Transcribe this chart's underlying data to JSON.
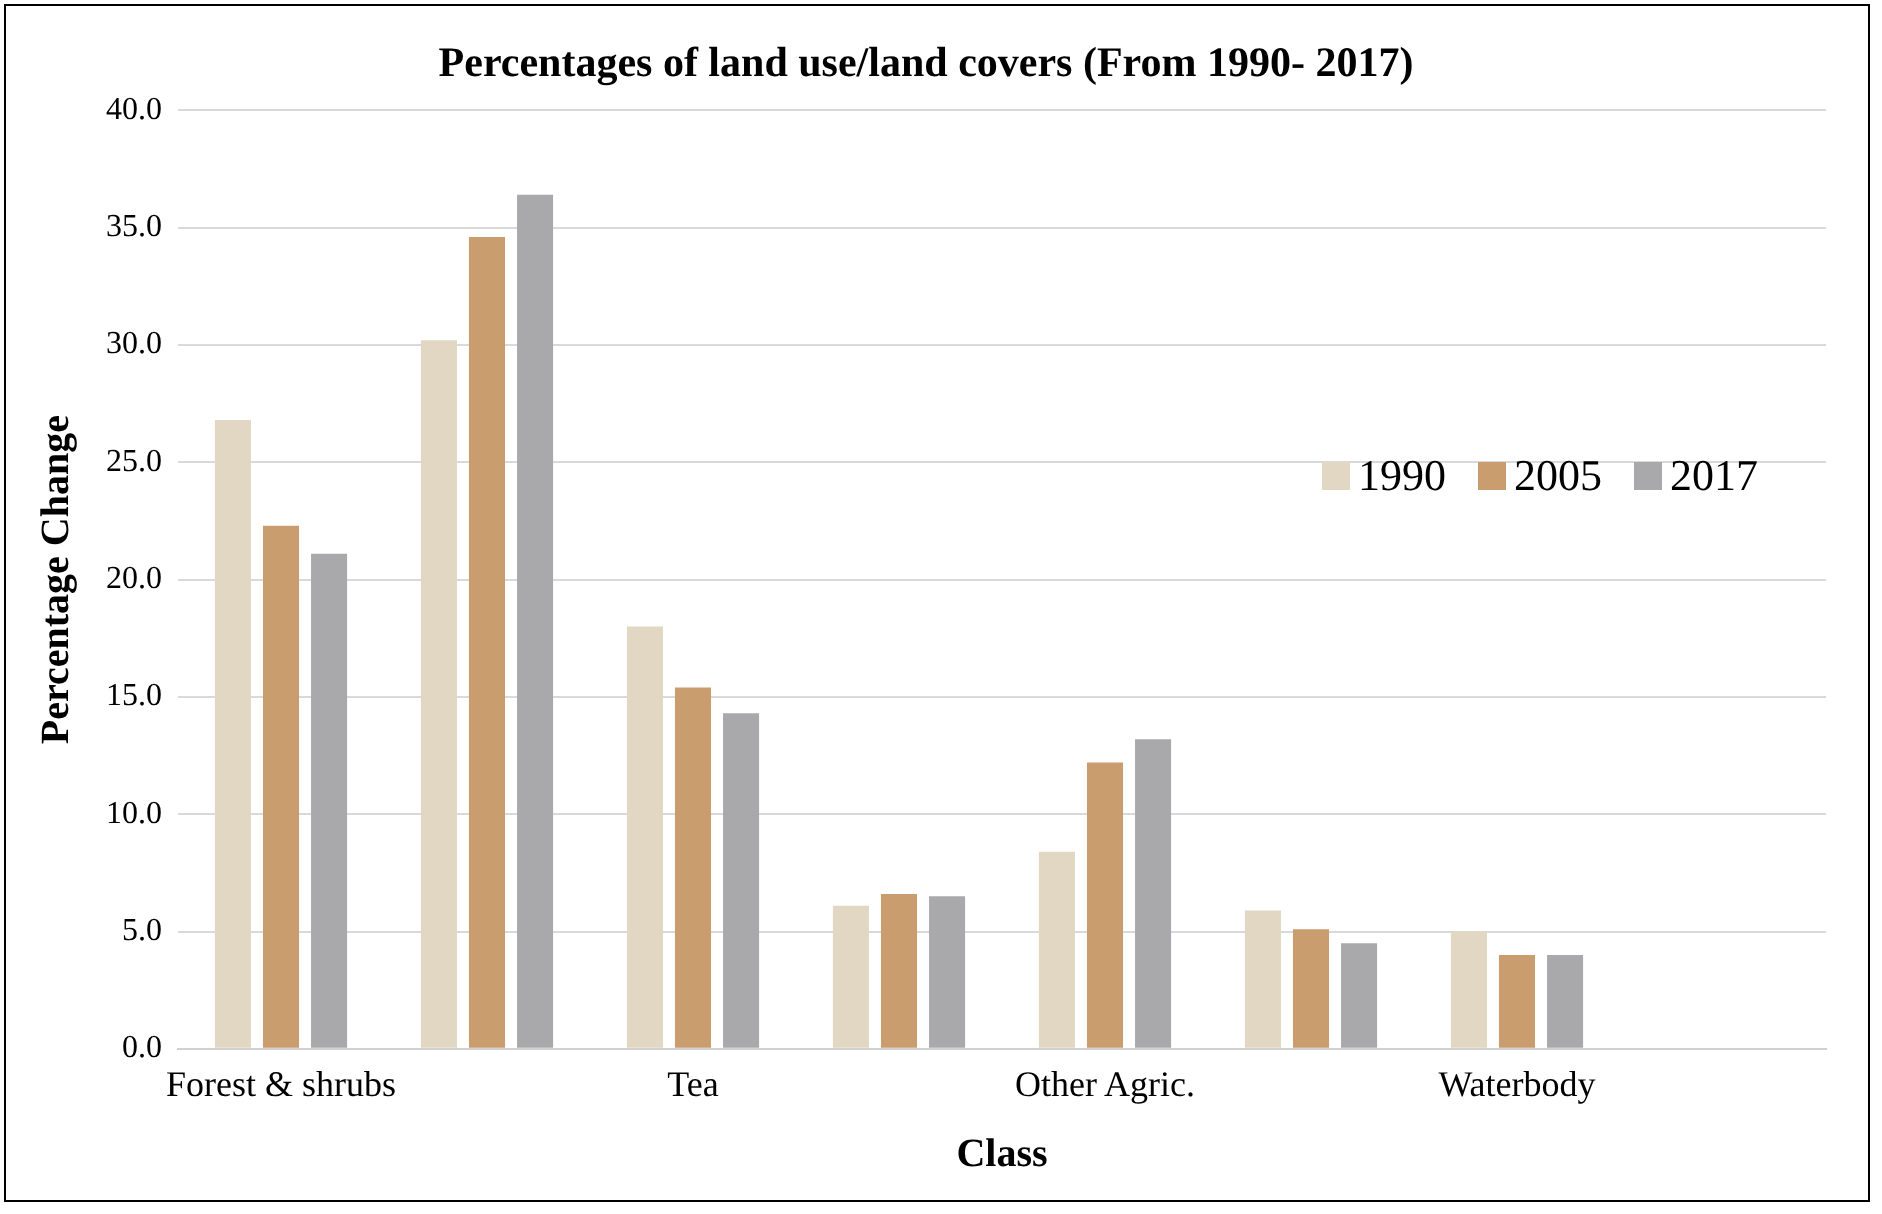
{
  "chart_data": {
    "type": "bar",
    "title": "Percentages of land use/land covers (From 1990- 2017)",
    "xlabel": "Class",
    "ylabel": "Percentage Change",
    "categories": [
      "Forest & shrubs",
      null,
      "Tea",
      null,
      "Other Agric.",
      null,
      "Waterbody",
      null
    ],
    "series": [
      {
        "name": "1990",
        "color": "#e2d7c2",
        "values": [
          26.8,
          30.2,
          18.0,
          6.1,
          8.4,
          5.9,
          5.0,
          null
        ]
      },
      {
        "name": "2005",
        "color": "#c99d6e",
        "values": [
          22.3,
          34.6,
          15.4,
          6.6,
          12.2,
          5.1,
          4.0,
          null
        ]
      },
      {
        "name": "2017",
        "color": "#a9a9ab",
        "values": [
          21.1,
          36.4,
          14.3,
          6.5,
          13.2,
          4.5,
          4.0,
          null
        ]
      }
    ],
    "ylim": [
      0,
      40
    ],
    "yticks": [
      {
        "value": 0,
        "label": "0.0"
      },
      {
        "value": 5,
        "label": "5.0"
      },
      {
        "value": 10,
        "label": "10.0"
      },
      {
        "value": 15,
        "label": "15.0"
      },
      {
        "value": 20,
        "label": "20.0"
      },
      {
        "value": 25,
        "label": "25.0"
      },
      {
        "value": 30,
        "label": "30.0"
      },
      {
        "value": 35,
        "label": "35.0"
      },
      {
        "value": 40,
        "label": "40.0"
      }
    ],
    "grid": "y",
    "legend": "right"
  }
}
